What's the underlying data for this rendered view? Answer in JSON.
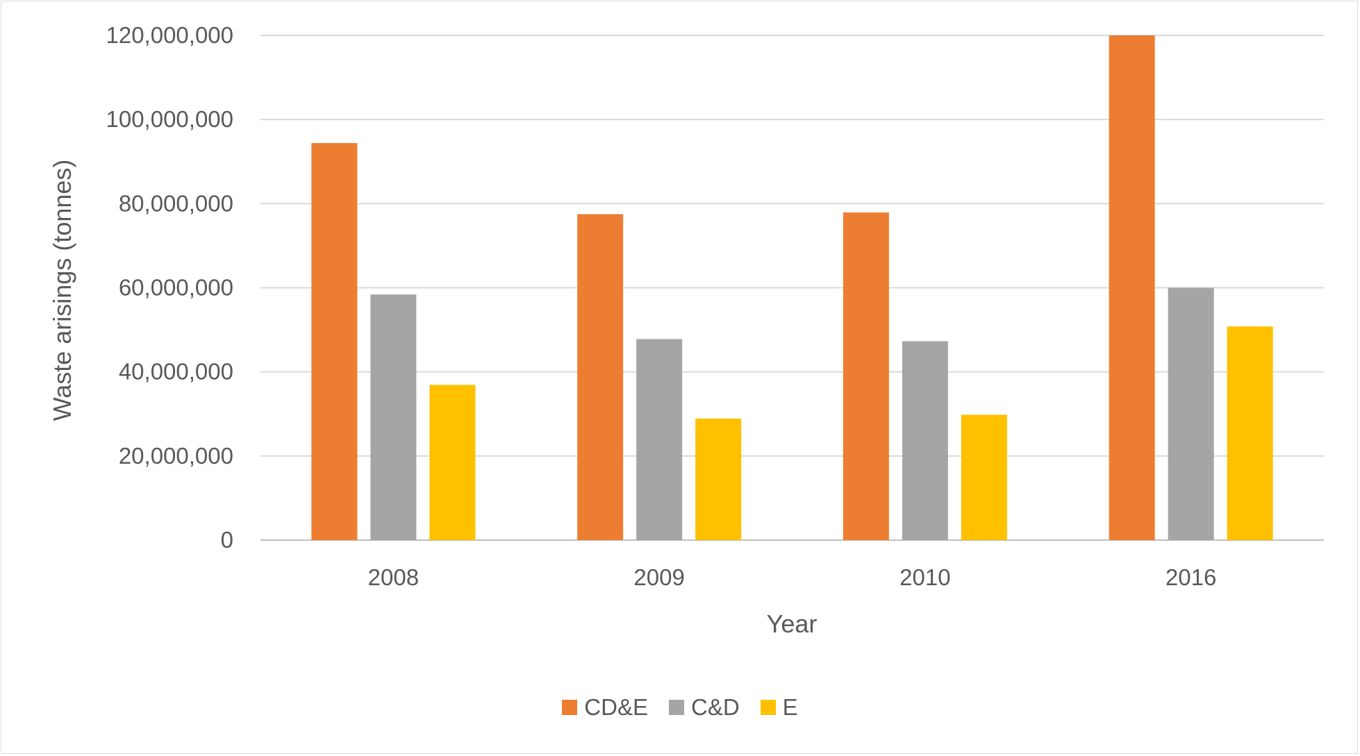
{
  "chart_data": {
    "type": "bar",
    "categories": [
      "2008",
      "2009",
      "2010",
      "2016"
    ],
    "series": [
      {
        "name": "CD&E",
        "color": "#ED7D31",
        "values": [
          94400000,
          77500000,
          77900000,
          120000000
        ]
      },
      {
        "name": "C&D",
        "color": "#A5A5A5",
        "values": [
          58400000,
          47800000,
          47300000,
          60000000
        ]
      },
      {
        "name": "E",
        "color": "#FFC000",
        "values": [
          36900000,
          28900000,
          29800000,
          50800000
        ]
      }
    ],
    "title": "",
    "xlabel": "Year",
    "ylabel": "Waste arisings (tonnes)",
    "ylim": [
      0,
      120000000
    ],
    "yticks": [
      "0",
      "20,000,000",
      "40,000,000",
      "60,000,000",
      "80,000,000",
      "100,000,000",
      "120,000,000"
    ],
    "grid": true,
    "legend": "bottom"
  }
}
